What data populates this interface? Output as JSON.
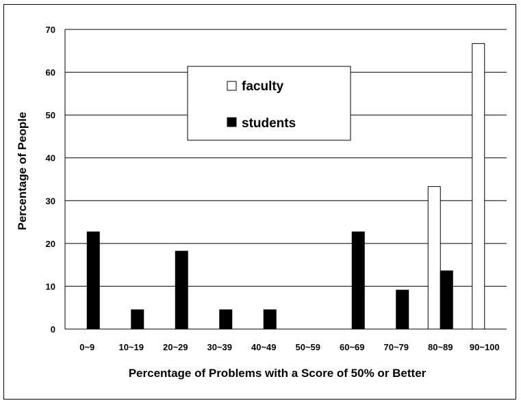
{
  "chart_data": {
    "type": "bar",
    "xlabel": "Percentage of Problems with a Score of 50% or Better",
    "ylabel": "Percentage of People",
    "ylim": [
      0,
      70
    ],
    "yticks": [
      0,
      10,
      20,
      30,
      40,
      50,
      60,
      70
    ],
    "grid": true,
    "legend_position": "top-center",
    "categories": [
      "0~9",
      "10~19",
      "20~29",
      "30~39",
      "40~49",
      "50~59",
      "60~69",
      "70~79",
      "80~89",
      "90~100"
    ],
    "series": [
      {
        "name": "faculty",
        "fill": "#ffffff",
        "values": [
          0,
          0,
          0,
          0,
          0,
          0,
          0,
          0,
          33.3,
          66.7
        ]
      },
      {
        "name": "students",
        "fill": "#000000",
        "values": [
          22.7,
          4.5,
          18.2,
          4.5,
          4.5,
          0,
          22.7,
          9.1,
          13.6,
          0
        ]
      }
    ]
  }
}
